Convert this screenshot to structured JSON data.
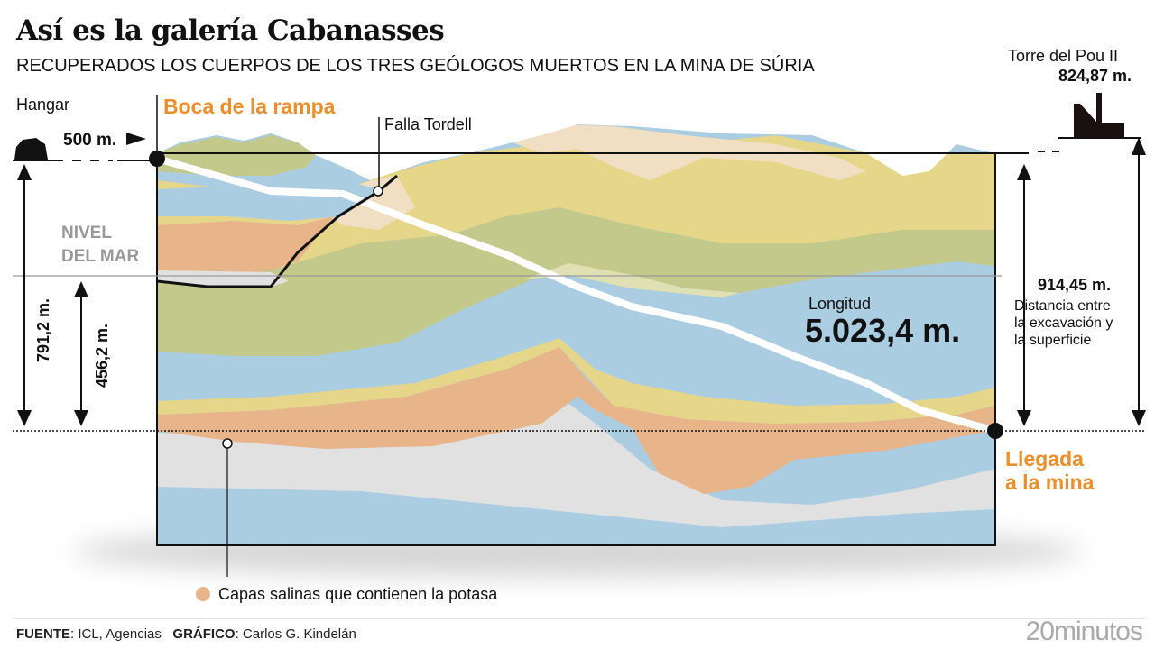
{
  "title": "Así es la galería Cabanasses",
  "subtitle": "RECUPERADOS LOS CUERPOS DE LOS TRES GEÓLOGOS MUERTOS EN LA MINA DE SÚRIA",
  "labels": {
    "hangar": "Hangar",
    "hangar_distance": "500 m.",
    "ramp_entrance": "Boca de la rampa",
    "fault": "Falla Tordell",
    "sea_level_line1": "NIVEL",
    "sea_level_line2": "DEL MAR",
    "depth_total": "791,2 m.",
    "depth_below_sea": "456,2 m.",
    "tower_name": "Torre del Pou II",
    "tower_altitude": "824,87 m.",
    "distance_value": "914,45 m.",
    "distance_desc_1": "Distancia entre",
    "distance_desc_2": "la excavación y",
    "distance_desc_3": "la superficie",
    "length_label": "Longitud",
    "length_value": "5.023,4 m.",
    "arrival_line1": "Llegada",
    "arrival_line2": "a la mina"
  },
  "legend": {
    "potash_layers": "Capas salinas que contienen la potasa",
    "potash_color": "#e8b48a"
  },
  "footer": {
    "source_label": "FUENTE",
    "source": ": ICL, Agencias",
    "graphic_label": "GRÁFICO",
    "graphic": ": Carlos G. Kindelán"
  },
  "brand": "20minutos",
  "colors": {
    "accent": "#ea8f2b",
    "blue": "#aacde2",
    "green": "#c2c98a",
    "yellow": "#e6d68a",
    "beige": "#f0dfc2",
    "salt": "#e8b48a",
    "grey": "#e1e1e1"
  }
}
